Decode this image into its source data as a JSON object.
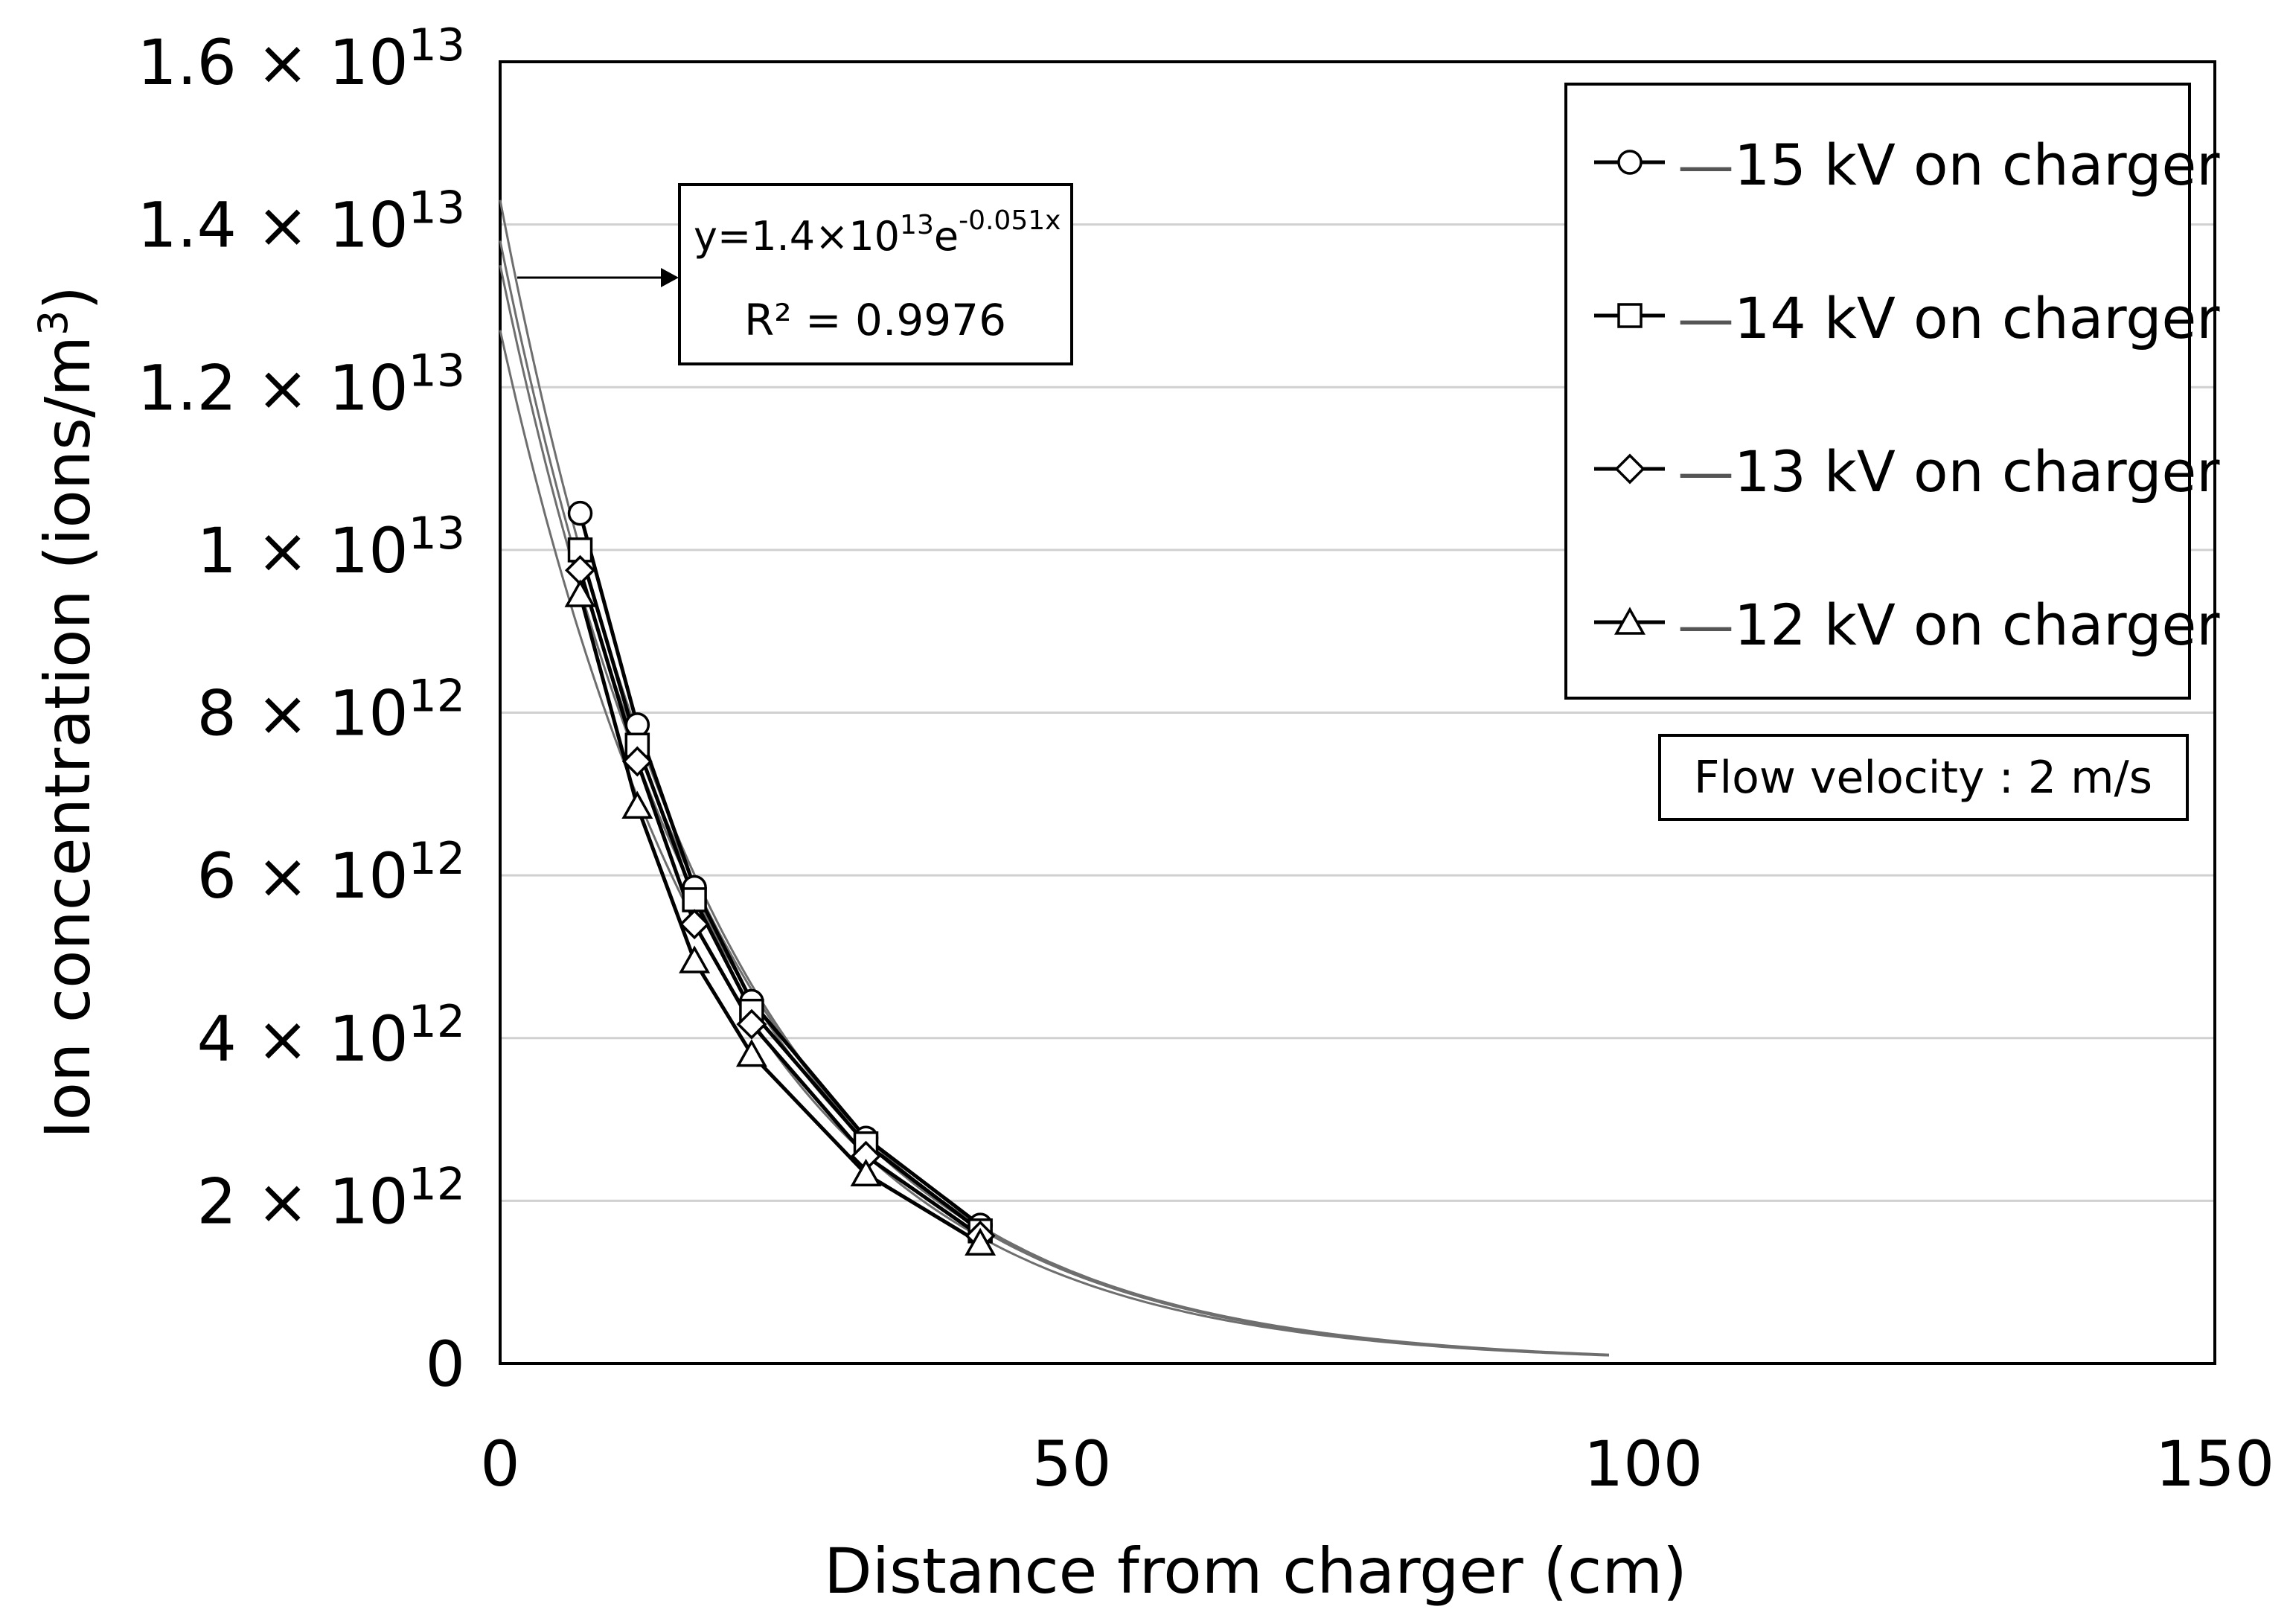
{
  "chart_data": {
    "type": "scatter",
    "title": "",
    "xlabel": "Distance from charger (cm)",
    "ylabel": "Ion concentration (ions/m",
    "ylabel_sup": "3",
    "ylabel_close": ")",
    "xlim": [
      0,
      150
    ],
    "ylim": [
      0,
      16000000000000
    ],
    "grid": "horizontal",
    "x_ticks": [
      {
        "value": 0,
        "label": "0"
      },
      {
        "value": 50,
        "label": "50"
      },
      {
        "value": 100,
        "label": "100"
      },
      {
        "value": 150,
        "label": "150"
      }
    ],
    "y_ticks": [
      {
        "value": 0,
        "mant": "0",
        "exp": ""
      },
      {
        "value": 2000000000000,
        "mant": "2 × 10",
        "exp": "12"
      },
      {
        "value": 4000000000000,
        "mant": "4 × 10",
        "exp": "12"
      },
      {
        "value": 6000000000000,
        "mant": "6 × 10",
        "exp": "12"
      },
      {
        "value": 8000000000000,
        "mant": "8 × 10",
        "exp": "12"
      },
      {
        "value": 10000000000000,
        "mant": "1 × 10",
        "exp": "13"
      },
      {
        "value": 12000000000000,
        "mant": "1.2 × 10",
        "exp": "13"
      },
      {
        "value": 14000000000000,
        "mant": "1.4 × 10",
        "exp": "13"
      },
      {
        "value": 16000000000000,
        "mant": "1.6 × 10",
        "exp": "13"
      }
    ],
    "series": [
      {
        "name": "15 kV on charger",
        "marker": "circle",
        "x": [
          7,
          12,
          17,
          22,
          32,
          42
        ],
        "y": [
          10450000000000,
          7850000000000,
          5850000000000,
          4450000000000,
          2770000000000,
          1700000000000
        ],
        "fit": {
          "a": 14300000000000,
          "b": 0.051,
          "x_end": 97
        }
      },
      {
        "name": "14 kV on charger",
        "marker": "square",
        "x": [
          7,
          12,
          17,
          22,
          32,
          42
        ],
        "y": [
          10000000000000,
          7600000000000,
          5700000000000,
          4330000000000,
          2700000000000,
          1630000000000
        ],
        "fit": {
          "a": 13800000000000,
          "b": 0.05,
          "x_end": 97
        }
      },
      {
        "name": "13 kV on charger",
        "marker": "diamond",
        "x": [
          7,
          12,
          17,
          22,
          32,
          42
        ],
        "y": [
          9750000000000,
          7400000000000,
          5400000000000,
          4170000000000,
          2550000000000,
          1570000000000
        ],
        "fit": {
          "a": 13500000000000,
          "b": 0.05,
          "x_end": 97
        }
      },
      {
        "name": "12 kV on charger",
        "marker": "triangle",
        "x": [
          7,
          12,
          17,
          22,
          32,
          42
        ],
        "y": [
          9450000000000,
          6850000000000,
          4950000000000,
          3800000000000,
          2330000000000,
          1480000000000
        ],
        "fit": {
          "a": 12700000000000,
          "b": 0.05,
          "x_end": 97
        }
      }
    ],
    "equation": {
      "prefix": "y=1.4×10",
      "sup": "13",
      "mid": "e",
      "exp": "-0.051x",
      "r2": "R² = 0.9976"
    },
    "note": "Flow velocity : 2 m/s",
    "legend_position": "top-right",
    "legend_dash": "—"
  }
}
